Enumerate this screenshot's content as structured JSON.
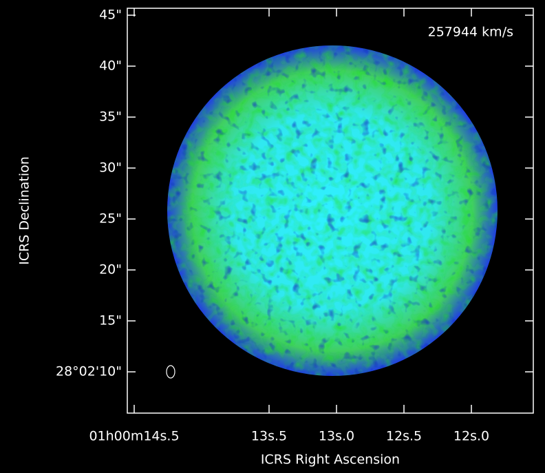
{
  "chart_data": {
    "type": "image",
    "annotation": "257944 km/s",
    "x_label": "ICRS Right Ascension",
    "y_label": "ICRS Declination",
    "xlim": [
      14.551,
      11.541
    ],
    "ylim": [
      5.95,
      45.68
    ],
    "xticks": [
      {
        "value": 14.5,
        "label": "01h00m14s.5"
      },
      {
        "value": 13.5,
        "label": "13s.5"
      },
      {
        "value": 13.0,
        "label": "13s.0"
      },
      {
        "value": 12.5,
        "label": "12s.5"
      },
      {
        "value": 12.0,
        "label": "12s.0"
      }
    ],
    "yticks": [
      {
        "value": 10,
        "label": "28°02'10\""
      },
      {
        "value": 15,
        "label": "15\""
      },
      {
        "value": 20,
        "label": "20\""
      },
      {
        "value": 25,
        "label": "25\""
      },
      {
        "value": 30,
        "label": "30\""
      },
      {
        "value": 35,
        "label": "35\""
      },
      {
        "value": 40,
        "label": "40\""
      },
      {
        "value": 45,
        "label": "45\""
      }
    ]
  }
}
